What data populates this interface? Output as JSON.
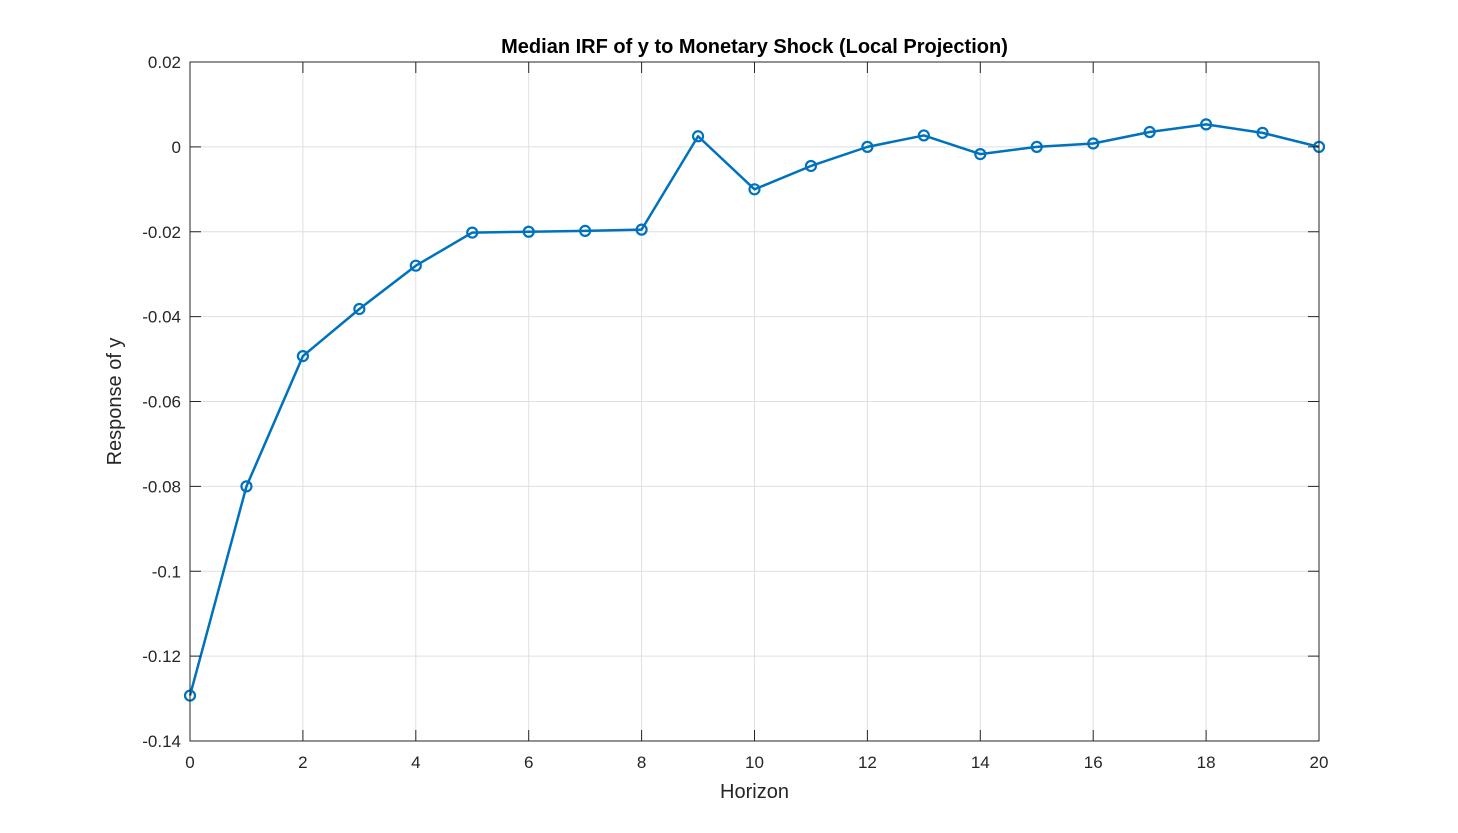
{
  "chart_data": {
    "type": "line",
    "title": "Median IRF of y to Monetary Shock (Local Projection)",
    "xlabel": "Horizon",
    "ylabel": "Response of y",
    "xlim": [
      0,
      20
    ],
    "ylim": [
      -0.14,
      0.02
    ],
    "xticks": [
      0,
      2,
      4,
      6,
      8,
      10,
      12,
      14,
      16,
      18,
      20
    ],
    "xtick_labels": [
      "0",
      "2",
      "4",
      "6",
      "8",
      "10",
      "12",
      "14",
      "16",
      "18",
      "20"
    ],
    "yticks": [
      0.02,
      0,
      -0.02,
      -0.04,
      -0.06,
      -0.08,
      -0.1,
      -0.12,
      -0.14
    ],
    "ytick_labels": [
      "0.02",
      "0",
      "-0.02",
      "-0.04",
      "-0.06",
      "-0.08",
      "-0.1",
      "-0.12",
      "-0.14"
    ],
    "grid": true,
    "x": [
      0,
      1,
      2,
      3,
      4,
      5,
      6,
      7,
      8,
      9,
      10,
      11,
      12,
      13,
      14,
      15,
      16,
      17,
      18,
      19,
      20
    ],
    "series": [
      {
        "values": [
          -0.1293,
          -0.08,
          -0.0493,
          -0.0382,
          -0.028,
          -0.0202,
          -0.02,
          -0.0198,
          -0.0195,
          0.0025,
          -0.01,
          -0.0045,
          0.0,
          0.0027,
          -0.0017,
          0.0,
          0.0008,
          0.0035,
          0.0053,
          0.0033,
          0.0
        ],
        "color": "#0072BD",
        "marker": "circle"
      }
    ]
  }
}
